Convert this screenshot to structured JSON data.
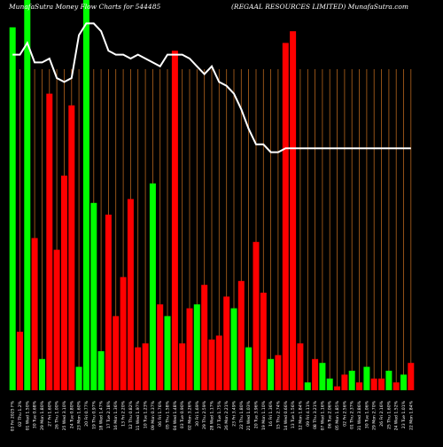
{
  "chart_data": {
    "type": "bar",
    "title_left": "MunafaSutra  Money Flow  Charts for 544485",
    "title_right": "(REGAAL  RESOURCES LIMITED) MunafaSutra.com",
    "colors": {
      "background": "#000000",
      "up": "#00ff00",
      "down": "#ff0000",
      "grid": "#b5651d",
      "line": "#ffffff",
      "text": "#ffffff"
    },
    "ylim": [
      0,
      100
    ],
    "categories": [
      "03 Fri 2025 F%",
      "02 Thu 1.2%",
      "01 Wed 1.50%",
      "30 Tue 0.68%",
      "29 Mon 1.80%",
      "27 Fri 1.60%",
      "26 Thu 1.00%",
      "25 Wed 3.10%",
      "24 Tue 0.80%",
      "23 Mon 1.60%",
      "20 Fri 0.77%",
      "19 Thu 0.97%",
      "18 Wed 1.47%",
      "17 Tue 2.18%",
      "16 Mon 1.36%",
      "13 Fri 2.20%",
      "12 Thu 0.82%",
      "11 Wed 1.97%",
      "10 Tue 1.23%",
      "09 Mon 0.37%",
      "06 Fri 1.76%",
      "05 Thu 1.58%",
      "04 Wed 1.48%",
      "03 Tue 0.90%",
      "02 Mon 3.26%",
      "30 Fri 1.69%",
      "29 Thu 2.59%",
      "28 Wed 1.17%",
      "27 Tue 1.75%",
      "26 Mon 2.21%",
      "23 Fri 3.49%",
      "22 Thu 1.80%",
      "21 Wed 1.03%",
      "20 Tue 3.96%",
      "19 Mon 1.10%",
      "16 Fri 1.36%",
      "15 Thu 2.74%",
      "14 Wed 0.66%",
      "13 Tue 1.56%",
      "12 Mon 1.84%",
      "09 Fri 4.11%",
      "08 Thu 3.21%",
      "07 Wed 1.16%",
      "06 Tue 2.06%",
      "05 Mon 1.85%",
      "02 Fri 2.56%",
      "01 Thu 2.37%",
      "31 Wed 3.86%",
      "30 Tue 1.06%",
      "29 Mon 2.70%",
      "26 Fri 2.16%",
      "25 Thu 1.60%",
      "24 Wed 1.52%",
      "23 Tue 1.01%",
      "22 Mon 1.84%"
    ],
    "bar_values": [
      93,
      15,
      100,
      39,
      8,
      76,
      36,
      55,
      73,
      6,
      100,
      48,
      10,
      45,
      19,
      29,
      49,
      11,
      12,
      53,
      22,
      19,
      87,
      12,
      21,
      22,
      27,
      13,
      14,
      24,
      21,
      28,
      11,
      38,
      25,
      8,
      9,
      89,
      92,
      12,
      2,
      8,
      7,
      3,
      1,
      4,
      5,
      2,
      6,
      3,
      3,
      5,
      2,
      4,
      7
    ],
    "bar_directions": [
      "up",
      "down",
      "up",
      "down",
      "up",
      "down",
      "down",
      "down",
      "down",
      "up",
      "up",
      "up",
      "up",
      "down",
      "down",
      "down",
      "down",
      "down",
      "down",
      "up",
      "down",
      "up",
      "down",
      "down",
      "down",
      "up",
      "down",
      "down",
      "down",
      "down",
      "up",
      "down",
      "up",
      "down",
      "down",
      "up",
      "down",
      "down",
      "down",
      "down",
      "up",
      "down",
      "up",
      "up",
      "down",
      "down",
      "up",
      "down",
      "up",
      "down",
      "down",
      "up",
      "down",
      "up",
      "down"
    ],
    "price_line": [
      86,
      86,
      89,
      84,
      84,
      85,
      80,
      79,
      80,
      91,
      94,
      94,
      92,
      87,
      86,
      86,
      85,
      86,
      85,
      84,
      83,
      86,
      86,
      86,
      85,
      83,
      81,
      83,
      79,
      78,
      76,
      72,
      67,
      63,
      63,
      61,
      61,
      62,
      62,
      62,
      62,
      62,
      62,
      62,
      62,
      62,
      62,
      62,
      62,
      62,
      62,
      62,
      62,
      62,
      62
    ],
    "grid_count": 55
  }
}
